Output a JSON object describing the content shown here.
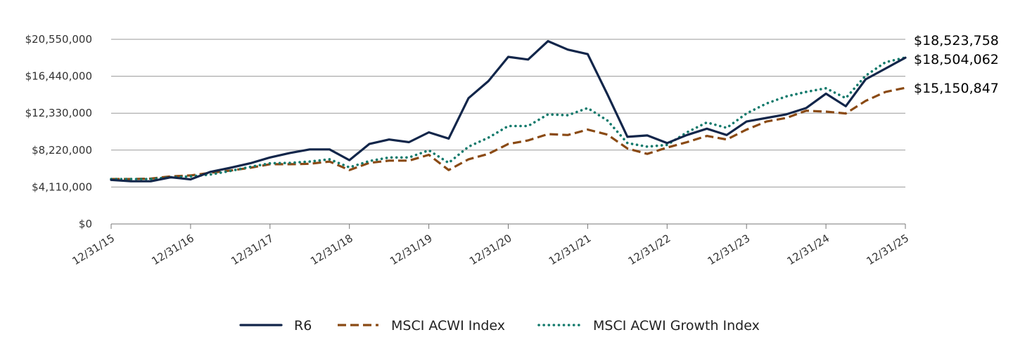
{
  "chart_data": {
    "type": "line",
    "title": "",
    "xlabel": "",
    "ylabel": "",
    "ylim": [
      0,
      20550000
    ],
    "y_ticks": [
      {
        "value": 0,
        "label": "$0"
      },
      {
        "value": 4110000,
        "label": "$4,110,000"
      },
      {
        "value": 8220000,
        "label": "$8,220,000"
      },
      {
        "value": 12330000,
        "label": "$12,330,000"
      },
      {
        "value": 16440000,
        "label": "$16,440,000"
      },
      {
        "value": 20550000,
        "label": "$20,550,000"
      }
    ],
    "x_ticks": [
      "12/31/15",
      "12/31/16",
      "12/31/17",
      "12/31/18",
      "12/31/19",
      "12/31/20",
      "12/31/21",
      "12/31/22",
      "12/31/23",
      "12/31/24",
      "12/31/25"
    ],
    "grid": true,
    "legend_position": "bottom",
    "end_labels": [
      "$18,523,758",
      "$18,504,062",
      "$15,150,847"
    ],
    "series": [
      {
        "name": "R6",
        "color": "#12264a",
        "style": "solid",
        "values": [
          4900000,
          4750000,
          4750000,
          5200000,
          4960000,
          5800000,
          6250000,
          6750000,
          7400000,
          7900000,
          8300000,
          8300000,
          7100000,
          8900000,
          9400000,
          9100000,
          10200000,
          9500000,
          14000000,
          15900000,
          18600000,
          18300000,
          20350000,
          19400000,
          18900000,
          14400000,
          9700000,
          9850000,
          9000000,
          9900000,
          10600000,
          9900000,
          11400000,
          11800000,
          12200000,
          12900000,
          14500000,
          13100000,
          16100000,
          17300000,
          18504062
        ]
      },
      {
        "name": "MSCI ACWI Index",
        "color": "#8a4a14",
        "style": "dashed",
        "values": [
          5000000,
          5000000,
          5050000,
          5300000,
          5400000,
          5700000,
          5950000,
          6250000,
          6650000,
          6650000,
          6700000,
          6950000,
          6000000,
          6800000,
          7050000,
          7050000,
          7700000,
          6000000,
          7200000,
          7800000,
          8900000,
          9300000,
          10000000,
          9900000,
          10500000,
          9950000,
          8400000,
          7800000,
          8500000,
          9100000,
          9800000,
          9400000,
          10500000,
          11400000,
          11800000,
          12600000,
          12500000,
          12300000,
          13700000,
          14700000,
          15150847
        ]
      },
      {
        "name": "MSCI ACWI Growth Index",
        "color": "#137a6c",
        "style": "dotted",
        "values": [
          5000000,
          5000000,
          5000000,
          5200000,
          5300000,
          5500000,
          5900000,
          6350000,
          6750000,
          6800000,
          6950000,
          7200000,
          6300000,
          7000000,
          7400000,
          7400000,
          8200000,
          6800000,
          8600000,
          9600000,
          10900000,
          10900000,
          12200000,
          12100000,
          12900000,
          11500000,
          9000000,
          8600000,
          8800000,
          10200000,
          11300000,
          10700000,
          12300000,
          13400000,
          14200000,
          14700000,
          15100000,
          14000000,
          16500000,
          18000000,
          18523758
        ]
      }
    ]
  }
}
